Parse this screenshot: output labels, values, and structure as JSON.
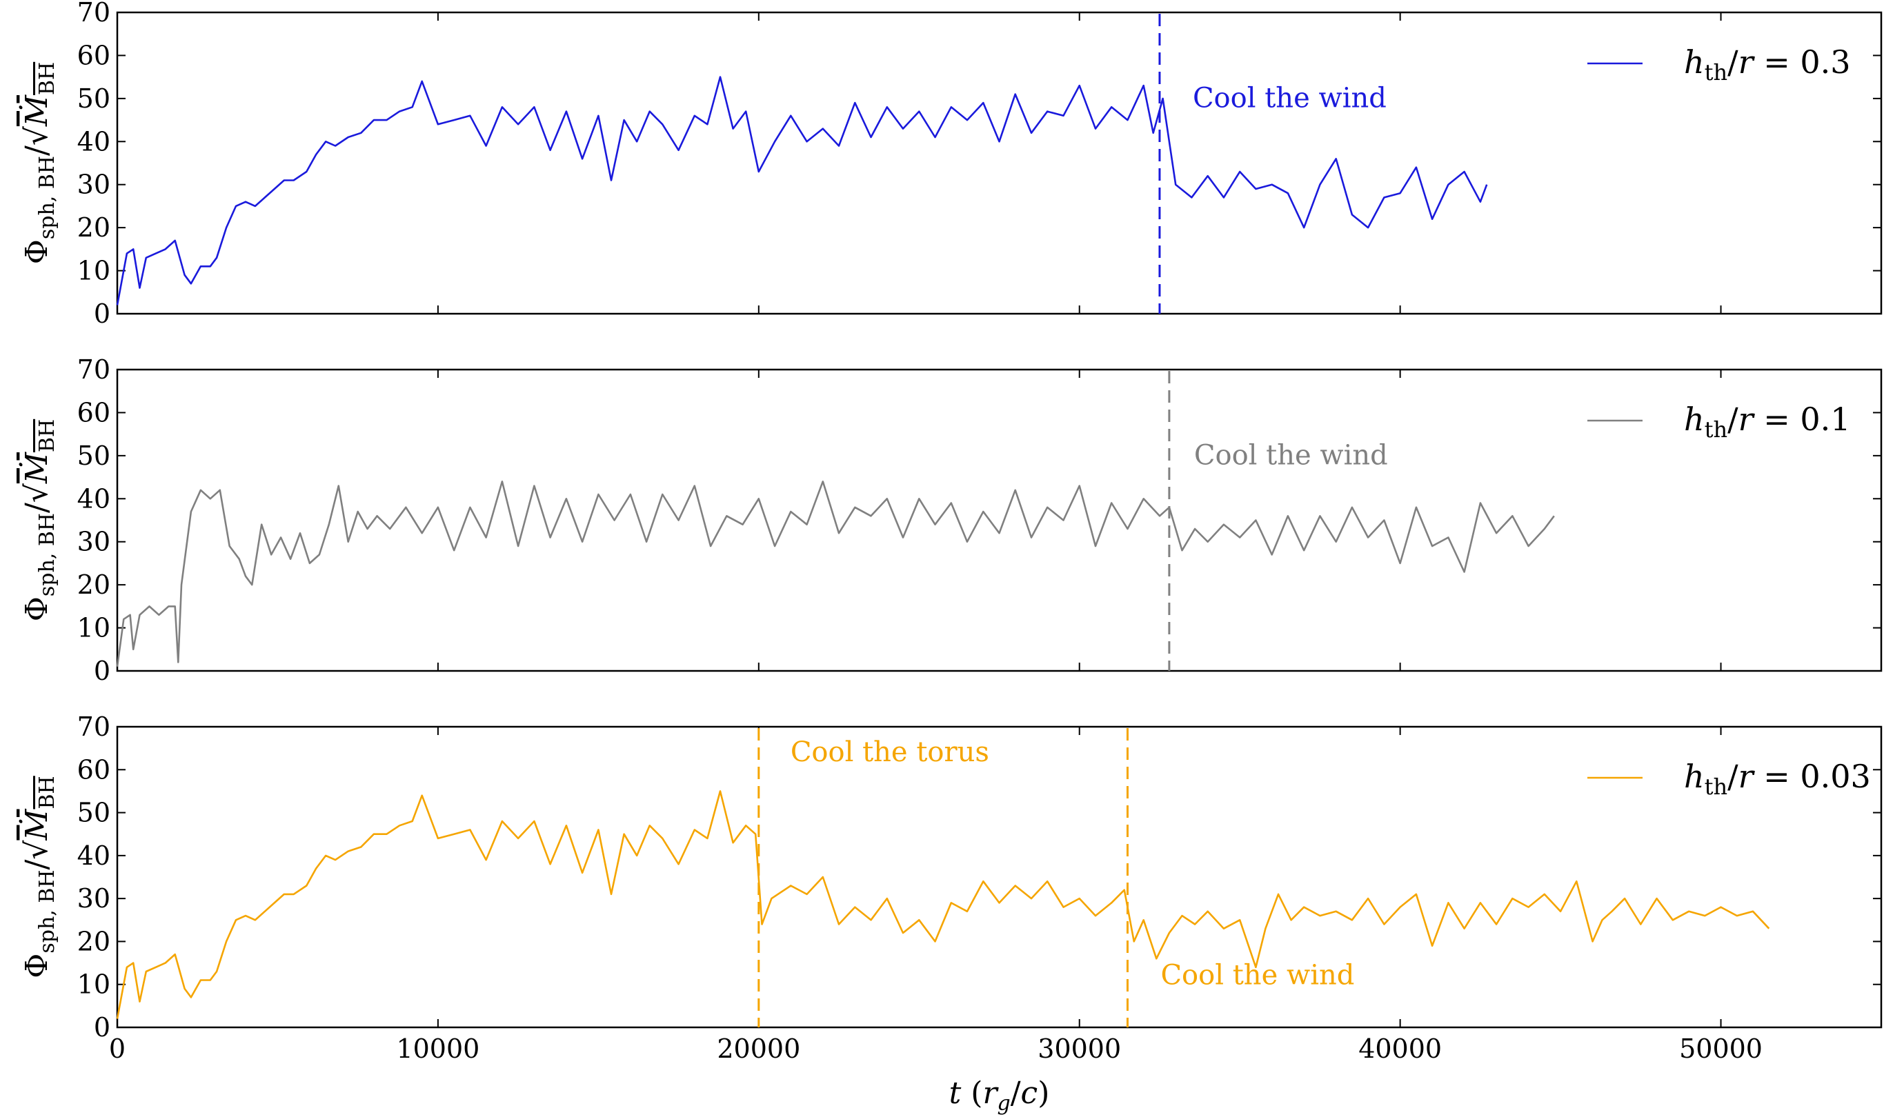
{
  "chart_data": [
    {
      "type": "line",
      "ylabel": "Φsph, BH/√ṀBH",
      "ylim": [
        0,
        70
      ],
      "yticks": [
        0,
        10,
        20,
        30,
        40,
        50,
        60,
        70
      ],
      "xlim": [
        0,
        55000
      ],
      "xticks": [
        10000,
        20000,
        30000,
        40000,
        50000
      ],
      "color": "#1a1adc",
      "legend": {
        "label": "h_th/r = 0.3",
        "position": "top-right"
      },
      "series": [
        {
          "name": "h_th/r = 0.3",
          "x": [
            0,
            300,
            500,
            700,
            900,
            1200,
            1500,
            1800,
            2100,
            2300,
            2600,
            2900,
            3100,
            3400,
            3700,
            4000,
            4300,
            4600,
            4900,
            5200,
            5500,
            5900,
            6200,
            6500,
            6800,
            7200,
            7600,
            8000,
            8400,
            8800,
            9200,
            9500,
            9700,
            10000,
            10500,
            11000,
            11500,
            12000,
            12500,
            13000,
            13500,
            14000,
            14500,
            15000,
            15400,
            15800,
            16200,
            16600,
            17000,
            17500,
            18000,
            18400,
            18800,
            19200,
            19600,
            20000,
            20500,
            21000,
            21500,
            22000,
            22500,
            23000,
            23500,
            24000,
            24500,
            25000,
            25500,
            26000,
            26500,
            27000,
            27500,
            28000,
            28500,
            29000,
            29500,
            30000,
            30500,
            31000,
            31500,
            32000,
            32300,
            32600,
            33000,
            33500,
            34000,
            34500,
            35000,
            35500,
            36000,
            36500,
            37000,
            37500,
            38000,
            38500,
            39000,
            39500,
            40000,
            40500,
            41000,
            41500,
            42000,
            42500,
            42700
          ],
          "y": [
            2,
            14,
            15,
            6,
            13,
            14,
            15,
            17,
            9,
            7,
            11,
            11,
            13,
            20,
            25,
            26,
            25,
            27,
            29,
            31,
            31,
            33,
            37,
            40,
            39,
            41,
            42,
            45,
            45,
            47,
            48,
            54,
            50,
            44,
            45,
            46,
            39,
            48,
            44,
            48,
            38,
            47,
            36,
            46,
            31,
            45,
            40,
            47,
            44,
            38,
            46,
            44,
            55,
            43,
            47,
            33,
            40,
            46,
            40,
            43,
            39,
            49,
            41,
            48,
            43,
            47,
            41,
            48,
            45,
            49,
            40,
            51,
            42,
            47,
            46,
            53,
            43,
            48,
            45,
            53,
            42,
            50,
            30,
            27,
            32,
            27,
            33,
            29,
            30,
            28,
            20,
            30,
            36,
            23,
            20,
            27,
            28,
            34,
            22,
            30,
            33,
            26,
            30
          ]
        }
      ],
      "annotations": [
        {
          "text": "Cool the wind",
          "x": 32500
        }
      ]
    },
    {
      "type": "line",
      "ylabel": "Φsph, BH/√ṀBH",
      "ylim": [
        0,
        70
      ],
      "yticks": [
        0,
        10,
        20,
        30,
        40,
        50,
        60,
        70
      ],
      "xlim": [
        0,
        55000
      ],
      "xticks": [
        10000,
        20000,
        30000,
        40000,
        50000
      ],
      "color": "#808080",
      "legend": {
        "label": "h_th/r = 0.1",
        "position": "top-right"
      },
      "series": [
        {
          "name": "h_th/r = 0.1",
          "x": [
            0,
            200,
            400,
            500,
            700,
            1000,
            1300,
            1600,
            1800,
            1900,
            2000,
            2300,
            2600,
            2900,
            3200,
            3500,
            3800,
            4000,
            4200,
            4500,
            4800,
            5100,
            5400,
            5700,
            6000,
            6300,
            6600,
            6900,
            7200,
            7500,
            7800,
            8100,
            8500,
            9000,
            9500,
            10000,
            10500,
            11000,
            11500,
            12000,
            12500,
            13000,
            13500,
            14000,
            14500,
            15000,
            15500,
            16000,
            16500,
            17000,
            17500,
            18000,
            18500,
            19000,
            19500,
            20000,
            20500,
            21000,
            21500,
            22000,
            22500,
            23000,
            23500,
            24000,
            24500,
            25000,
            25500,
            26000,
            26500,
            27000,
            27500,
            28000,
            28500,
            29000,
            29500,
            30000,
            30500,
            31000,
            31500,
            32000,
            32500,
            32800,
            33200,
            33600,
            34000,
            34500,
            35000,
            35500,
            36000,
            36500,
            37000,
            37500,
            38000,
            38500,
            39000,
            39500,
            40000,
            40500,
            41000,
            41500,
            42000,
            42500,
            43000,
            43500,
            44000,
            44500,
            44800
          ],
          "y": [
            1,
            12,
            13,
            5,
            13,
            15,
            13,
            15,
            15,
            2,
            20,
            37,
            42,
            40,
            42,
            29,
            26,
            22,
            20,
            34,
            27,
            31,
            26,
            32,
            25,
            27,
            34,
            43,
            30,
            37,
            33,
            36,
            33,
            38,
            32,
            38,
            28,
            38,
            31,
            44,
            29,
            43,
            31,
            40,
            30,
            41,
            35,
            41,
            30,
            41,
            35,
            43,
            29,
            36,
            34,
            40,
            29,
            37,
            34,
            44,
            32,
            38,
            36,
            40,
            31,
            40,
            34,
            39,
            30,
            37,
            32,
            42,
            31,
            38,
            35,
            43,
            29,
            39,
            33,
            40,
            36,
            38,
            28,
            33,
            30,
            34,
            31,
            35,
            27,
            36,
            28,
            36,
            30,
            38,
            31,
            35,
            25,
            38,
            29,
            31,
            23,
            39,
            32,
            36,
            29,
            33,
            36
          ]
        }
      ],
      "annotations": [
        {
          "text": "Cool the wind",
          "x": 32800
        }
      ]
    },
    {
      "type": "line",
      "ylabel": "Φsph, BH/√ṀBH",
      "ylim": [
        0,
        70
      ],
      "yticks": [
        0,
        10,
        20,
        30,
        40,
        50,
        60,
        70
      ],
      "xlim": [
        0,
        55000
      ],
      "xticks": [
        10000,
        20000,
        30000,
        40000,
        50000
      ],
      "xlabel": "t (rg/c)",
      "xticklabels": [
        "10000",
        "20000",
        "30000",
        "40000",
        "50000"
      ],
      "color": "#f5a500",
      "legend": {
        "label": "h_th/r = 0.03",
        "position": "top-right"
      },
      "series": [
        {
          "name": "h_th/r = 0.03",
          "x": [
            0,
            300,
            500,
            700,
            900,
            1200,
            1500,
            1800,
            2100,
            2300,
            2600,
            2900,
            3100,
            3400,
            3700,
            4000,
            4300,
            4600,
            4900,
            5200,
            5500,
            5900,
            6200,
            6500,
            6800,
            7200,
            7600,
            8000,
            8400,
            8800,
            9200,
            9500,
            9700,
            10000,
            10500,
            11000,
            11500,
            12000,
            12500,
            13000,
            13500,
            14000,
            14500,
            15000,
            15400,
            15800,
            16200,
            16600,
            17000,
            17500,
            18000,
            18400,
            18800,
            19200,
            19600,
            19900,
            20100,
            20400,
            21000,
            21500,
            22000,
            22500,
            23000,
            23500,
            24000,
            24500,
            25000,
            25500,
            26000,
            26500,
            27000,
            27500,
            28000,
            28500,
            29000,
            29500,
            30000,
            30500,
            31000,
            31400,
            31700,
            32000,
            32400,
            32800,
            33200,
            33600,
            34000,
            34500,
            35000,
            35500,
            35800,
            36200,
            36600,
            37000,
            37500,
            38000,
            38500,
            39000,
            39500,
            40000,
            40500,
            41000,
            41500,
            42000,
            42500,
            43000,
            43500,
            44000,
            44500,
            45000,
            45500,
            46000,
            46300,
            46600,
            47000,
            47500,
            48000,
            48500,
            49000,
            49500,
            50000,
            50500,
            51000,
            51500
          ],
          "y": [
            2,
            14,
            15,
            6,
            13,
            14,
            15,
            17,
            9,
            7,
            11,
            11,
            13,
            20,
            25,
            26,
            25,
            27,
            29,
            31,
            31,
            33,
            37,
            40,
            39,
            41,
            42,
            45,
            45,
            47,
            48,
            54,
            50,
            44,
            45,
            46,
            39,
            48,
            44,
            48,
            38,
            47,
            36,
            46,
            31,
            45,
            40,
            47,
            44,
            38,
            46,
            44,
            55,
            43,
            47,
            45,
            24,
            30,
            33,
            31,
            35,
            24,
            28,
            25,
            30,
            22,
            25,
            20,
            29,
            27,
            34,
            29,
            33,
            30,
            34,
            28,
            30,
            26,
            29,
            32,
            20,
            25,
            16,
            22,
            26,
            24,
            27,
            23,
            25,
            14,
            23,
            31,
            25,
            28,
            26,
            27,
            25,
            30,
            24,
            28,
            31,
            19,
            29,
            23,
            29,
            24,
            30,
            28,
            31,
            27,
            34,
            20,
            25,
            27,
            30,
            24,
            30,
            25,
            27,
            26,
            28,
            26,
            27,
            23
          ]
        }
      ],
      "annotations": [
        {
          "text": "Cool the torus",
          "x": 20000
        },
        {
          "text": "Cool the wind",
          "x": 31500
        }
      ]
    }
  ]
}
